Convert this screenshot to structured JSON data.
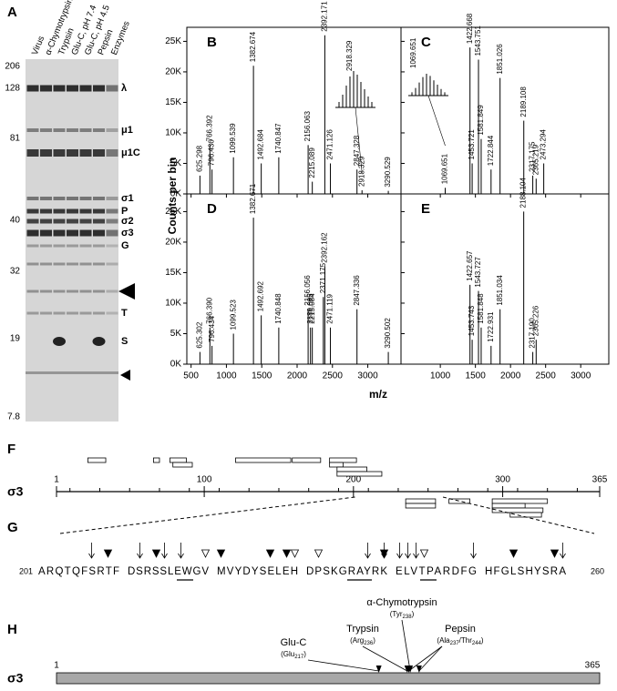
{
  "gel": {
    "label": "A",
    "lanes": [
      "Virus",
      "α-Chymotrypsin",
      "Trypsin",
      "Glu-C, pH 7.4",
      "Glu-C, pH 4.5",
      "Pepsin",
      "Enzymes"
    ],
    "markers": [
      206,
      128,
      81,
      40,
      32,
      19,
      7.8
    ],
    "bands": [
      "λ",
      "μ1",
      "μ1C",
      "σ1",
      "P",
      "σ2",
      "σ3",
      "G",
      "T",
      "S"
    ]
  },
  "spectra": {
    "xlabel": "m/z",
    "ylabel": "Counts per bin"
  },
  "chart_data": [
    {
      "type": "spectrum",
      "label": "B",
      "xlim": [
        440,
        3470
      ],
      "ylim": [
        0,
        27.3
      ],
      "x": [
        625.298,
        766.392,
        796.436,
        1099.539,
        1382.674,
        1492.684,
        1740.847,
        2156.063,
        2215.089,
        2392.171,
        2471.126,
        2847.328,
        2918.329,
        3290.529
      ],
      "peak_labels": [
        "625.298",
        "766.392",
        "796.436",
        "1099.539",
        "1382.674",
        "1492.684",
        "1740.847",
        "2156.063",
        "2215.089",
        "2392.171",
        "2471.126",
        "2847.328",
        "2918.329",
        "3290.529"
      ],
      "values": [
        3,
        8,
        4,
        6,
        21,
        5,
        6,
        8,
        2,
        26,
        5,
        4,
        0.6,
        0.5
      ],
      "inset_label": "2918.329",
      "xticks": [
        500,
        1000,
        1500,
        2000,
        2500,
        3000
      ],
      "yticks": [
        {
          "value": 0,
          "label": "0K"
        },
        {
          "value": 5,
          "label": "5K"
        },
        {
          "value": 10,
          "label": "10K"
        },
        {
          "value": 15,
          "label": "15K"
        },
        {
          "value": 20,
          "label": "20K"
        },
        {
          "value": 25,
          "label": "25K"
        }
      ]
    },
    {
      "type": "spectrum",
      "label": "C",
      "xlim": [
        440,
        3400
      ],
      "ylim": [
        0,
        27.3
      ],
      "x": [
        1069.651,
        1422.668,
        1453.721,
        1543.751,
        1581.849,
        1722.844,
        1851.026,
        2189.108,
        2317.175,
        2365.219,
        2473.294
      ],
      "peak_labels": [
        "1069.651",
        "1422.668",
        "1453.721",
        "1543.751",
        "1581.849",
        "1722.844",
        "1851.026",
        "2189.108",
        "2317.175",
        "2365.219",
        "2473.294"
      ],
      "values": [
        1,
        24,
        5,
        22,
        9,
        4,
        19,
        12,
        3,
        2.5,
        5
      ],
      "inset_label": "1069.651",
      "xticks": [
        1000,
        1500,
        2000,
        2500,
        3000
      ],
      "yticks": [
        0,
        5,
        10,
        15,
        20,
        25
      ]
    },
    {
      "type": "spectrum",
      "label": "D",
      "xlim": [
        440,
        3470
      ],
      "ylim": [
        0,
        27.9
      ],
      "x": [
        625.302,
        766.39,
        796.434,
        1099.523,
        1382.671,
        1492.692,
        1740.848,
        2156.056,
        2189.095,
        2215.084,
        2371.175,
        2392.162,
        2471.119,
        2847.336,
        3290.502
      ],
      "peak_labels": [
        "625.302",
        "766.390",
        "796.434",
        "1099.523",
        "1382.671",
        "1492.692",
        "1740.848",
        "2156.056",
        "2189.095",
        "2215.084",
        "2371.175",
        "2392.162",
        "2471.119",
        "2847.336",
        "3290.502"
      ],
      "values": [
        2,
        6,
        3,
        5,
        24,
        8,
        6,
        9,
        6,
        6,
        11,
        16,
        6,
        9,
        2
      ],
      "xticks": [
        500,
        1000,
        1500,
        2000,
        2500,
        3000
      ],
      "yticks": [
        {
          "value": 0,
          "label": "0K"
        },
        {
          "value": 5,
          "label": "5K"
        },
        {
          "value": 10,
          "label": "10K"
        },
        {
          "value": 15,
          "label": "15K"
        },
        {
          "value": 20,
          "label": "20K"
        },
        {
          "value": 25,
          "label": "25K"
        }
      ]
    },
    {
      "type": "spectrum",
      "label": "E",
      "xlim": [
        440,
        3400
      ],
      "ylim": [
        0,
        27.9
      ],
      "x": [
        1422.657,
        1453.743,
        1543.727,
        1581.848,
        1722.931,
        1851.034,
        2188.104,
        2317.19,
        2365.226
      ],
      "peak_labels": [
        "1422.657",
        "1453.743",
        "1543.727",
        "1581.848",
        "1722.931",
        "1851.034",
        "2188.104",
        "2317.190",
        "2365.226"
      ],
      "values": [
        13,
        4,
        12,
        6,
        3,
        9,
        25,
        2,
        4
      ],
      "xticks": [
        1000,
        1500,
        2000,
        2500,
        3000
      ],
      "yticks": [
        0,
        5,
        10,
        15,
        20,
        25
      ]
    }
  ],
  "map": {
    "label": "F",
    "protein": "σ3",
    "ticks": [
      1,
      100,
      200,
      300,
      365
    ],
    "fragments_above": [
      [
        22,
        34
      ],
      [
        66,
        70
      ],
      [
        77,
        88
      ],
      [
        79,
        92
      ],
      [
        121,
        158
      ],
      [
        159,
        178
      ],
      [
        184,
        202
      ],
      [
        184,
        193
      ],
      [
        189,
        209
      ],
      [
        189,
        219
      ]
    ],
    "fragments_below": [
      [
        235,
        255
      ],
      [
        235,
        255
      ],
      [
        264,
        278
      ],
      [
        293,
        330
      ],
      [
        293,
        315
      ],
      [
        293,
        327
      ],
      [
        305,
        326
      ]
    ]
  },
  "sequence": {
    "label": "G",
    "start": 201,
    "end": 260,
    "groups": [
      "ARQTQFSRTF",
      "DSRSSLEWGV",
      "MVYDYSELEH",
      "DPSKGRAYRK",
      "ELVTPARDFG",
      "HFGLSHYSRA"
    ],
    "arrows": [
      207,
      212,
      215,
      217,
      238,
      240,
      241,
      242,
      243,
      250,
      260
    ],
    "filled_triangles": [
      209,
      214,
      221,
      227,
      229,
      240,
      254,
      259
    ],
    "open_triangles": [
      220,
      230,
      232,
      244
    ],
    "underlines": [
      [
        217,
        218
      ],
      [
        236,
        238
      ],
      [
        244,
        245
      ]
    ]
  },
  "cleavage": {
    "label": "H",
    "protein": "σ3",
    "start": 1,
    "end": 365,
    "sites": [
      {
        "enzyme": "Glu-C",
        "residues": [
          {
            "text": "(Glu",
            "pos": 217,
            "after": ")"
          }
        ]
      },
      {
        "enzyme": "Trypsin",
        "residues": [
          {
            "text": "(Arg",
            "pos": 236,
            "after": ")"
          }
        ]
      },
      {
        "enzyme": "α-Chymotrypsin",
        "residues": [
          {
            "text": "(Tyr",
            "pos": 238,
            "after": ")"
          }
        ]
      },
      {
        "enzyme": "Pepsin",
        "residues": [
          {
            "text": "(Ala",
            "pos": 237,
            "after": "/"
          },
          {
            "text": "Thr",
            "pos": 244,
            "after": ")"
          }
        ]
      }
    ]
  }
}
